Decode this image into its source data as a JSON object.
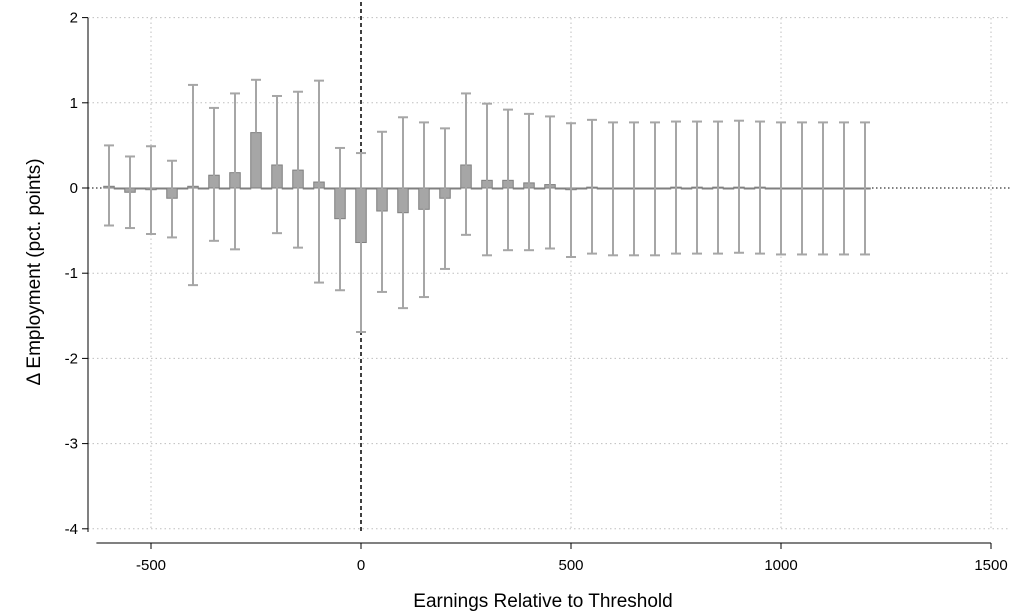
{
  "chart_data": {
    "type": "bar",
    "xlabel": "Earnings Relative to Threshold",
    "ylabel": "Δ Employment (pct. points)",
    "xlim": [
      -630,
      1500
    ],
    "ylim": [
      -4,
      2
    ],
    "xticks": [
      -500,
      0,
      500,
      1000,
      1500
    ],
    "yticks": [
      2,
      1,
      0,
      -1,
      -2,
      -3,
      -4
    ],
    "bin_width": 25,
    "grid": true,
    "reference_lines": {
      "x": 0,
      "y": 0
    },
    "colors": {
      "bar": "#a6a6a6",
      "bar_edge": "#7f7f7f",
      "error_bar": "#a6a6a6",
      "grid": "#bfbfbf"
    },
    "bins": [
      {
        "x": -600,
        "y": 0.02,
        "lo": -0.44,
        "hi": 0.5
      },
      {
        "x": -575,
        "y": 0.0,
        "lo": null,
        "hi": null
      },
      {
        "x": -550,
        "y": -0.05,
        "lo": -0.47,
        "hi": 0.37
      },
      {
        "x": -525,
        "y": 0.0,
        "lo": null,
        "hi": null
      },
      {
        "x": -500,
        "y": -0.02,
        "lo": -0.54,
        "hi": 0.49
      },
      {
        "x": -475,
        "y": 0.0,
        "lo": null,
        "hi": null
      },
      {
        "x": -450,
        "y": -0.12,
        "lo": -0.58,
        "hi": 0.32
      },
      {
        "x": -425,
        "y": 0.0,
        "lo": null,
        "hi": null
      },
      {
        "x": -400,
        "y": 0.02,
        "lo": -1.14,
        "hi": 1.21
      },
      {
        "x": -375,
        "y": 0.0,
        "lo": null,
        "hi": null
      },
      {
        "x": -350,
        "y": 0.15,
        "lo": -0.62,
        "hi": 0.94
      },
      {
        "x": -325,
        "y": 0.0,
        "lo": null,
        "hi": null
      },
      {
        "x": -300,
        "y": 0.18,
        "lo": -0.72,
        "hi": 1.11
      },
      {
        "x": -275,
        "y": 0.0,
        "lo": null,
        "hi": null
      },
      {
        "x": -250,
        "y": 0.65,
        "lo": null,
        "hi": 1.27
      },
      {
        "x": -225,
        "y": 0.0,
        "lo": null,
        "hi": null
      },
      {
        "x": -200,
        "y": 0.27,
        "lo": -0.53,
        "hi": 1.08
      },
      {
        "x": -175,
        "y": 0.0,
        "lo": null,
        "hi": null
      },
      {
        "x": -150,
        "y": 0.21,
        "lo": -0.7,
        "hi": 1.13
      },
      {
        "x": -125,
        "y": 0.0,
        "lo": null,
        "hi": null
      },
      {
        "x": -100,
        "y": 0.07,
        "lo": -1.11,
        "hi": 1.26
      },
      {
        "x": -75,
        "y": 0.0,
        "lo": null,
        "hi": null
      },
      {
        "x": -50,
        "y": -0.36,
        "lo": -1.2,
        "hi": 0.47
      },
      {
        "x": -25,
        "y": 0.0,
        "lo": null,
        "hi": null
      },
      {
        "x": 0,
        "y": -0.64,
        "lo": -1.69,
        "hi": 0.41
      },
      {
        "x": 25,
        "y": 0.0,
        "lo": null,
        "hi": null
      },
      {
        "x": 50,
        "y": -0.27,
        "lo": -1.22,
        "hi": 0.66
      },
      {
        "x": 75,
        "y": 0.0,
        "lo": null,
        "hi": null
      },
      {
        "x": 100,
        "y": -0.29,
        "lo": -1.41,
        "hi": 0.83
      },
      {
        "x": 125,
        "y": 0.0,
        "lo": null,
        "hi": null
      },
      {
        "x": 150,
        "y": -0.25,
        "lo": -1.28,
        "hi": 0.77
      },
      {
        "x": 175,
        "y": 0.0,
        "lo": null,
        "hi": null
      },
      {
        "x": 200,
        "y": -0.12,
        "lo": -0.95,
        "hi": 0.7
      },
      {
        "x": 225,
        "y": 0.0,
        "lo": null,
        "hi": null
      },
      {
        "x": 250,
        "y": 0.27,
        "lo": -0.55,
        "hi": 1.11
      },
      {
        "x": 275,
        "y": 0.0,
        "lo": null,
        "hi": null
      },
      {
        "x": 300,
        "y": 0.09,
        "lo": -0.79,
        "hi": 0.99
      },
      {
        "x": 325,
        "y": 0.0,
        "lo": null,
        "hi": null
      },
      {
        "x": 350,
        "y": 0.09,
        "lo": -0.73,
        "hi": 0.92
      },
      {
        "x": 375,
        "y": 0.0,
        "lo": null,
        "hi": null
      },
      {
        "x": 400,
        "y": 0.06,
        "lo": -0.73,
        "hi": 0.87
      },
      {
        "x": 425,
        "y": 0.0,
        "lo": null,
        "hi": null
      },
      {
        "x": 450,
        "y": 0.04,
        "lo": -0.71,
        "hi": 0.84
      },
      {
        "x": 475,
        "y": 0.0,
        "lo": null,
        "hi": null
      },
      {
        "x": 500,
        "y": -0.02,
        "lo": -0.81,
        "hi": 0.76
      },
      {
        "x": 525,
        "y": 0.0,
        "lo": null,
        "hi": null
      },
      {
        "x": 550,
        "y": 0.01,
        "lo": -0.77,
        "hi": 0.8
      },
      {
        "x": 575,
        "y": 0.0,
        "lo": null,
        "hi": null
      },
      {
        "x": 600,
        "y": 0.0,
        "lo": -0.79,
        "hi": 0.77
      },
      {
        "x": 625,
        "y": 0.0,
        "lo": null,
        "hi": null
      },
      {
        "x": 650,
        "y": 0.0,
        "lo": -0.79,
        "hi": 0.77
      },
      {
        "x": 675,
        "y": 0.0,
        "lo": null,
        "hi": null
      },
      {
        "x": 700,
        "y": 0.0,
        "lo": -0.79,
        "hi": 0.77
      },
      {
        "x": 725,
        "y": 0.0,
        "lo": null,
        "hi": null
      },
      {
        "x": 750,
        "y": 0.01,
        "lo": -0.77,
        "hi": 0.78
      },
      {
        "x": 775,
        "y": 0.0,
        "lo": null,
        "hi": null
      },
      {
        "x": 800,
        "y": 0.01,
        "lo": -0.77,
        "hi": 0.78
      },
      {
        "x": 825,
        "y": 0.0,
        "lo": null,
        "hi": null
      },
      {
        "x": 850,
        "y": 0.01,
        "lo": -0.77,
        "hi": 0.78
      },
      {
        "x": 875,
        "y": 0.0,
        "lo": null,
        "hi": null
      },
      {
        "x": 900,
        "y": 0.01,
        "lo": -0.76,
        "hi": 0.79
      },
      {
        "x": 925,
        "y": 0.0,
        "lo": null,
        "hi": null
      },
      {
        "x": 950,
        "y": 0.01,
        "lo": -0.77,
        "hi": 0.78
      },
      {
        "x": 975,
        "y": 0.0,
        "lo": null,
        "hi": null
      },
      {
        "x": 1000,
        "y": 0.0,
        "lo": -0.78,
        "hi": 0.77
      },
      {
        "x": 1025,
        "y": 0.0,
        "lo": null,
        "hi": null
      },
      {
        "x": 1050,
        "y": 0.0,
        "lo": -0.78,
        "hi": 0.77
      },
      {
        "x": 1075,
        "y": 0.0,
        "lo": null,
        "hi": null
      },
      {
        "x": 1100,
        "y": 0.0,
        "lo": -0.78,
        "hi": 0.77
      },
      {
        "x": 1125,
        "y": 0.0,
        "lo": null,
        "hi": null
      },
      {
        "x": 1150,
        "y": 0.0,
        "lo": -0.78,
        "hi": 0.77
      },
      {
        "x": 1175,
        "y": 0.0,
        "lo": null,
        "hi": null
      },
      {
        "x": 1200,
        "y": 0.0,
        "lo": -0.78,
        "hi": 0.77
      }
    ]
  }
}
